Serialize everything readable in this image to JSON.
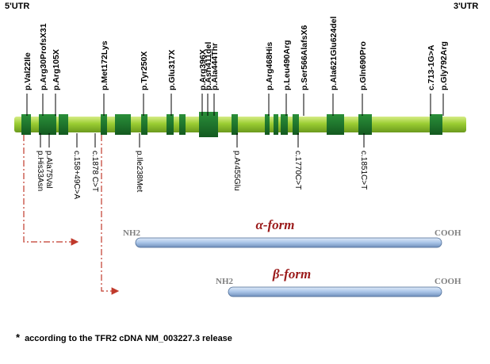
{
  "utr": {
    "five_prime": "5'UTR",
    "three_prime": "3'UTR"
  },
  "mutations_above": [
    {
      "label": "p.Val22Ile"
    },
    {
      "label": "p.Arg30ProfsX31"
    },
    {
      "label": "p.Arg105X"
    },
    {
      "label": "p.Met172Lys"
    },
    {
      "label": "p.Tyr250X"
    },
    {
      "label": "p.Glu317X"
    },
    {
      "label": "p.Arg396X"
    },
    {
      "label": "p.Asn411del"
    },
    {
      "label": "p.Ala444Thr"
    },
    {
      "label": "p.Arg468His"
    },
    {
      "label": "p.Leu490Arg"
    },
    {
      "label": "p.Ser566AlafsX6"
    },
    {
      "label": "p.Ala621Glu624del"
    },
    {
      "label": "p.Gln690Pro"
    },
    {
      "label": "c.713-1G>A"
    },
    {
      "label": "p.Gly792Arg"
    }
  ],
  "mutations_below": [
    {
      "label": "p.His33Asn"
    },
    {
      "label": "p.Ala75Val"
    },
    {
      "label": "c.158+49C>A"
    },
    {
      "label": "c.1878 C>T"
    },
    {
      "label": "p.Ile238Met"
    },
    {
      "label": "p.Ar455Glu"
    },
    {
      "label": "c.1770C>T"
    },
    {
      "label": "c.1851C>T"
    }
  ],
  "alpha": {
    "title": "α-form",
    "nterm": "NH2",
    "cterm": "COOH"
  },
  "beta": {
    "title": "β-form",
    "nterm": "NH2",
    "cterm": "COOH"
  },
  "footnote": {
    "star": "*",
    "text": "according to the TFR2 cDNA NM_003227.3 release"
  },
  "colors": {
    "gene_bar": "#9acd32",
    "gene_bar_dark": "#6b9a1e",
    "exon": "#1f7a2e",
    "dashed_arrow": "#c0392b",
    "protein_bar": "#a9c4e8",
    "form_title": "#9b1b1b",
    "terminus": "#808080"
  }
}
